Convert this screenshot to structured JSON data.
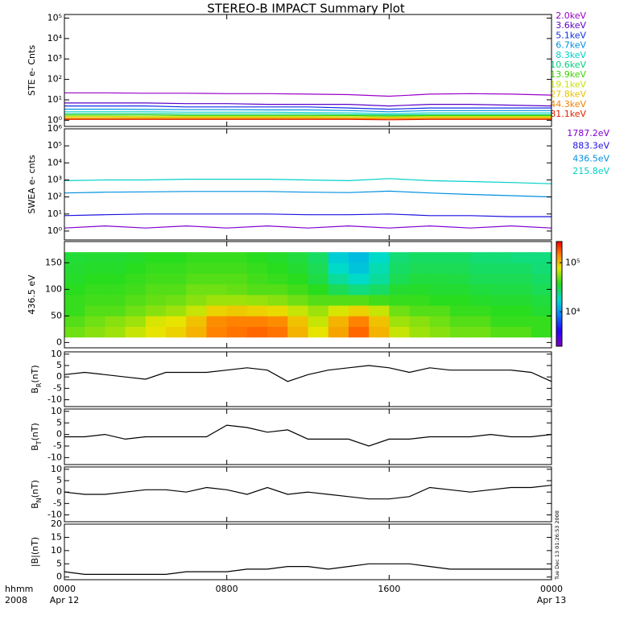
{
  "chart_data": {
    "title": "STEREO-B IMPACT Summary Plot",
    "xlim": [
      0,
      24
    ],
    "xticks": [
      {
        "value": 0,
        "label": "0000"
      },
      {
        "value": 8,
        "label": "0800"
      },
      {
        "value": 16,
        "label": "1600"
      },
      {
        "value": 24,
        "label": "0000"
      }
    ],
    "date_labels": [
      {
        "value": 0,
        "label": "Apr 12"
      },
      {
        "value": 24,
        "label": "Apr 13"
      }
    ],
    "xlabel": "hhmm",
    "year": "2008",
    "timestamp": "Tue Dec 13 01:26:53 2008",
    "panels": [
      {
        "type": "line",
        "ylabel": "STE e- Cnts",
        "log": true,
        "ylim": [
          0.5,
          150000
        ],
        "yticks": [
          {
            "value": 1,
            "label": "10⁰"
          },
          {
            "value": 10,
            "label": "10¹"
          },
          {
            "value": 100,
            "label": "10²"
          },
          {
            "value": 1000,
            "label": "10³"
          },
          {
            "value": 10000,
            "label": "10⁴"
          },
          {
            "value": 100000,
            "label": "10⁵"
          }
        ],
        "x": [
          0,
          2,
          4,
          6,
          8,
          10,
          12,
          14,
          16,
          18,
          20,
          22,
          24
        ],
        "series": [
          {
            "name": "2.0keV",
            "color": "#9a00c8",
            "values": [
              22,
              22,
              21,
              21,
              20,
              20,
              19,
              18,
              15,
              19,
              20,
              19,
              17
            ]
          },
          {
            "name": "3.6keV",
            "color": "#5a00c8",
            "values": [
              7,
              7,
              7,
              6.5,
              6.5,
              6,
              6,
              6,
              5,
              6,
              6,
              5.5,
              5
            ]
          },
          {
            "name": "5.1keV",
            "color": "#1030e8",
            "values": [
              5,
              5,
              5,
              4.5,
              4.5,
              4.5,
              4.5,
              4,
              3.5,
              4,
              4,
              4,
              4
            ]
          },
          {
            "name": "6.7keV",
            "color": "#0090e0",
            "values": [
              3.5,
              3.5,
              3.4,
              3.3,
              3.3,
              3.2,
              3.2,
              3,
              2.6,
              3,
              3,
              3,
              3
            ]
          },
          {
            "name": "8.3keV",
            "color": "#00d0c8",
            "values": [
              2.6,
              2.6,
              2.6,
              2.5,
              2.5,
              2.5,
              2.4,
              2.3,
              2.1,
              2.3,
              2.3,
              2.3,
              2.3
            ]
          },
          {
            "name": "10.6keV",
            "color": "#00d080",
            "values": [
              2.1,
              2.1,
              2.1,
              2,
              2,
              2,
              2,
              1.9,
              1.8,
              1.9,
              1.9,
              1.9,
              1.9
            ]
          },
          {
            "name": "13.9keV",
            "color": "#40d000",
            "values": [
              1.8,
              1.8,
              1.8,
              1.7,
              1.7,
              1.7,
              1.7,
              1.7,
              1.6,
              1.7,
              1.7,
              1.7,
              1.7
            ]
          },
          {
            "name": "19.1keV",
            "color": "#c8e000",
            "values": [
              1.55,
              1.55,
              1.5,
              1.5,
              1.5,
              1.5,
              1.5,
              1.5,
              1.45,
              1.5,
              1.5,
              1.5,
              1.5
            ]
          },
          {
            "name": "27.8keV",
            "color": "#e8c000",
            "values": [
              1.35,
              1.35,
              1.35,
              1.35,
              1.35,
              1.35,
              1.35,
              1.3,
              1.3,
              1.35,
              1.35,
              1.35,
              1.35
            ]
          },
          {
            "name": "44.3keV",
            "color": "#f08000",
            "values": [
              1.2,
              1.2,
              1.2,
              1.2,
              1.2,
              1.2,
              1.2,
              1.2,
              1.15,
              1.2,
              1.2,
              1.2,
              1.2
            ]
          },
          {
            "name": "81.1keV",
            "color": "#e02000",
            "values": [
              1.1,
              1.1,
              1.1,
              1.1,
              1.1,
              1.1,
              1.1,
              1.1,
              1.05,
              1.1,
              1.1,
              1.1,
              1.1
            ]
          }
        ]
      },
      {
        "type": "line",
        "ylabel": "SWEA e- cnts",
        "log": true,
        "ylim": [
          0.3,
          1000000
        ],
        "yticks": [
          {
            "value": 1,
            "label": "10⁰"
          },
          {
            "value": 10,
            "label": "10¹"
          },
          {
            "value": 100,
            "label": "10²"
          },
          {
            "value": 1000,
            "label": "10³"
          },
          {
            "value": 10000,
            "label": "10⁴"
          },
          {
            "value": 100000,
            "label": "10⁵"
          },
          {
            "value": 1000000,
            "label": "10⁶"
          }
        ],
        "x": [
          0,
          2,
          4,
          6,
          8,
          10,
          12,
          14,
          16,
          18,
          20,
          22,
          24
        ],
        "series": [
          {
            "name": "1787.2eV",
            "color": "#8000d0",
            "values": [
              1.5,
              2,
              1.5,
              2,
              1.5,
              2,
              1.5,
              2,
              1.5,
              2,
              1.5,
              2,
              1.5
            ]
          },
          {
            "name": "883.3eV",
            "color": "#1a10e0",
            "values": [
              8,
              9,
              10,
              10,
              10,
              10,
              9,
              9,
              10,
              8,
              8,
              7,
              7
            ]
          },
          {
            "name": "436.5eV",
            "color": "#0090e0",
            "values": [
              170,
              190,
              200,
              210,
              210,
              210,
              190,
              180,
              220,
              170,
              140,
              120,
              100
            ]
          },
          {
            "name": "215.8eV",
            "color": "#00d0c8",
            "values": [
              900,
              1000,
              1000,
              1100,
              1100,
              1100,
              1000,
              900,
              1200,
              900,
              800,
              700,
              600
            ]
          }
        ]
      },
      {
        "type": "heatmap",
        "ylabel": "436.5 eV",
        "ylim": [
          -10,
          190
        ],
        "yticks": [
          0,
          50,
          100,
          150
        ],
        "x_edges": [
          0,
          1,
          2,
          3,
          4,
          5,
          6,
          7,
          8,
          9,
          10,
          11,
          12,
          13,
          14,
          15,
          16,
          17,
          18,
          19,
          20,
          21,
          22,
          23,
          24
        ],
        "y_edges": [
          10,
          30,
          50,
          70,
          90,
          110,
          130,
          150,
          170
        ],
        "zlim": [
          2000,
          270000
        ],
        "zticks": [
          {
            "value": 10000,
            "label": "10⁴"
          },
          {
            "value": 100000,
            "label": "10⁵"
          }
        ],
        "values": [
          [
            50000,
            55000,
            60000,
            70000,
            80000,
            90000,
            110000,
            150000,
            160000,
            170000,
            160000,
            110000,
            80000,
            120000,
            170000,
            110000,
            70000,
            60000,
            55000,
            50000,
            50000,
            45000,
            45000,
            40000
          ],
          [
            45000,
            50000,
            55000,
            60000,
            75000,
            80000,
            100000,
            140000,
            150000,
            150000,
            140000,
            100000,
            70000,
            110000,
            150000,
            100000,
            60000,
            55000,
            50000,
            45000,
            45000,
            40000,
            40000,
            40000
          ],
          [
            40000,
            45000,
            45000,
            50000,
            55000,
            60000,
            70000,
            90000,
            95000,
            90000,
            85000,
            70000,
            60000,
            75000,
            90000,
            70000,
            50000,
            45000,
            45000,
            40000,
            40000,
            38000,
            38000,
            35000
          ],
          [
            40000,
            42000,
            42000,
            45000,
            48000,
            50000,
            55000,
            60000,
            60000,
            58000,
            55000,
            50000,
            45000,
            45000,
            45000,
            42000,
            40000,
            40000,
            38000,
            38000,
            36000,
            35000,
            35000,
            33000
          ],
          [
            38000,
            40000,
            40000,
            42000,
            45000,
            45000,
            50000,
            50000,
            48000,
            45000,
            45000,
            42000,
            38000,
            30000,
            25000,
            28000,
            35000,
            36000,
            35000,
            35000,
            33000,
            32000,
            32000,
            30000
          ],
          [
            36000,
            38000,
            38000,
            40000,
            42000,
            42000,
            45000,
            45000,
            45000,
            42000,
            40000,
            38000,
            32000,
            22000,
            18000,
            22000,
            30000,
            33000,
            33000,
            32000,
            30000,
            30000,
            30000,
            28000
          ],
          [
            35000,
            36000,
            36000,
            38000,
            40000,
            40000,
            42000,
            42000,
            42000,
            40000,
            38000,
            35000,
            30000,
            18000,
            15000,
            20000,
            28000,
            30000,
            30000,
            30000,
            28000,
            28000,
            28000,
            26000
          ],
          [
            34000,
            35000,
            35000,
            36000,
            38000,
            38000,
            40000,
            40000,
            40000,
            38000,
            36000,
            33000,
            28000,
            16000,
            14000,
            18000,
            26000,
            28000,
            28000,
            28000,
            26000,
            26000,
            25000,
            25000
          ]
        ]
      },
      {
        "type": "line",
        "ylabel": "B",
        "ylabel_sub": "R",
        "ylabel_unit": "(nT)",
        "ylim": [
          -13,
          11
        ],
        "yticks": [
          -10,
          -5,
          0,
          5,
          10
        ],
        "x": [
          0,
          1,
          2,
          3,
          4,
          5,
          6,
          7,
          8,
          9,
          10,
          11,
          12,
          13,
          14,
          15,
          16,
          17,
          18,
          19,
          20,
          21,
          22,
          23,
          24
        ],
        "series": [
          {
            "color": "#000000",
            "values": [
              1,
              2,
              1,
              0,
              -1,
              2,
              2,
              2,
              3,
              4,
              3,
              -2,
              1,
              3,
              4,
              5,
              4,
              2,
              4,
              3,
              3,
              3,
              3,
              2,
              -2
            ]
          }
        ]
      },
      {
        "type": "line",
        "ylabel": "B",
        "ylabel_sub": "T",
        "ylabel_unit": "(nT)",
        "ylim": [
          -13,
          11
        ],
        "yticks": [
          -10,
          -5,
          0,
          5,
          10
        ],
        "x": [
          0,
          1,
          2,
          3,
          4,
          5,
          6,
          7,
          8,
          9,
          10,
          11,
          12,
          13,
          14,
          15,
          16,
          17,
          18,
          19,
          20,
          21,
          22,
          23,
          24
        ],
        "series": [
          {
            "color": "#000000",
            "values": [
              -1,
              -1,
              0,
              -2,
              -1,
              -1,
              -1,
              -1,
              4,
              3,
              1,
              2,
              -2,
              -2,
              -2,
              -5,
              -2,
              -2,
              -1,
              -1,
              -1,
              0,
              -1,
              -1,
              0
            ]
          }
        ]
      },
      {
        "type": "line",
        "ylabel": "B",
        "ylabel_sub": "N",
        "ylabel_unit": "(nT)",
        "ylim": [
          -13,
          11
        ],
        "yticks": [
          -10,
          -5,
          0,
          5,
          10
        ],
        "x": [
          0,
          1,
          2,
          3,
          4,
          5,
          6,
          7,
          8,
          9,
          10,
          11,
          12,
          13,
          14,
          15,
          16,
          17,
          18,
          19,
          20,
          21,
          22,
          23,
          24
        ],
        "series": [
          {
            "color": "#000000",
            "values": [
              0,
              -1,
              -1,
              0,
              1,
              1,
              0,
              2,
              1,
              -1,
              2,
              -1,
              0,
              -1,
              -2,
              -3,
              -3,
              -2,
              2,
              1,
              0,
              1,
              2,
              2,
              3
            ]
          }
        ]
      },
      {
        "type": "line",
        "ylabel": "|B|",
        "ylabel_unit": "(nT)",
        "ylim": [
          -1,
          20
        ],
        "yticks": [
          0,
          5,
          10,
          15,
          20
        ],
        "x": [
          0,
          1,
          2,
          3,
          4,
          5,
          6,
          7,
          8,
          9,
          10,
          11,
          12,
          13,
          14,
          15,
          16,
          17,
          18,
          19,
          20,
          21,
          22,
          23,
          24
        ],
        "series": [
          {
            "color": "#000000",
            "values": [
              2,
              1,
              1,
              1,
              1,
              1,
              2,
              2,
              2,
              3,
              3,
              4,
              4,
              3,
              4,
              5,
              5,
              5,
              4,
              3,
              3,
              3,
              3,
              3,
              3
            ]
          }
        ]
      }
    ]
  }
}
